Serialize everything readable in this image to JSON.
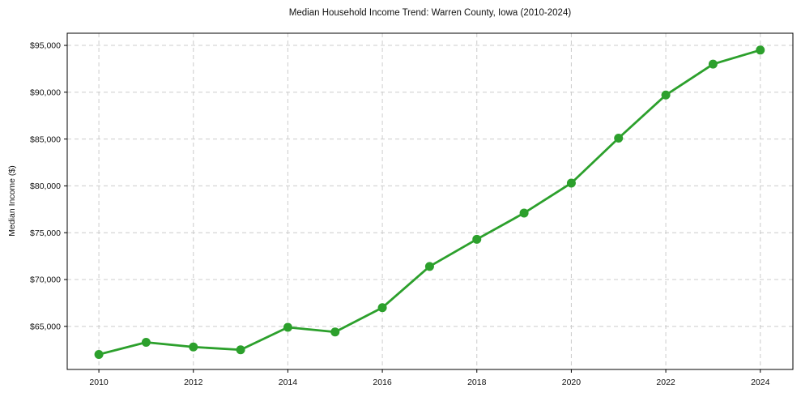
{
  "chart_data": {
    "type": "line",
    "title": "Median Household Income Trend: Warren County, Iowa (2010-2024)",
    "ylabel": "Median Income ($)",
    "xlabel": "",
    "x": [
      2010,
      2011,
      2012,
      2013,
      2014,
      2015,
      2016,
      2017,
      2018,
      2019,
      2020,
      2021,
      2022,
      2023,
      2024
    ],
    "series": [
      {
        "name": "Median Household Income",
        "color": "#2ca02c",
        "values": [
          62000,
          63300,
          62800,
          62500,
          64900,
          64400,
          67000,
          71400,
          74300,
          77100,
          80300,
          85100,
          89700,
          93000,
          94500
        ]
      }
    ],
    "xticks": [
      2010,
      2012,
      2014,
      2016,
      2018,
      2020,
      2022,
      2024
    ],
    "yticks": [
      65000,
      70000,
      75000,
      80000,
      85000,
      90000,
      95000
    ],
    "ytick_labels": [
      "$65,000",
      "$70,000",
      "$75,000",
      "$80,000",
      "$85,000",
      "$90,000",
      "$95,000"
    ],
    "xlim": [
      2009.33,
      2024.69
    ],
    "ylim": [
      60400,
      96300
    ],
    "grid": true,
    "legend": "none",
    "marker": "circle",
    "line_width": 2.8,
    "marker_radius": 5.5,
    "colors": {
      "line": "#2ca02c",
      "grid": "#cccccc",
      "axis": "#000000",
      "text": "#111111",
      "background": "#ffffff"
    }
  }
}
